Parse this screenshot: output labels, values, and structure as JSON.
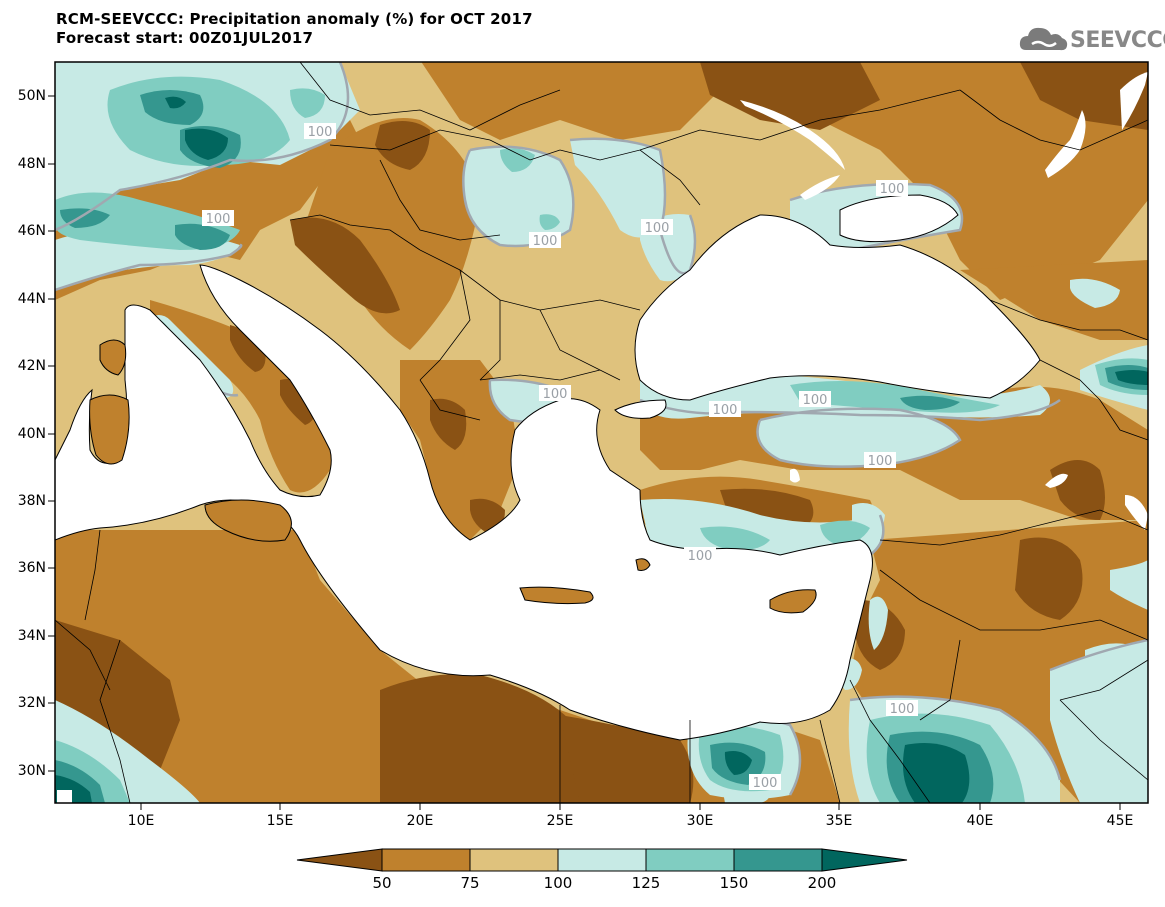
{
  "header": {
    "title_line1": "RCM-SEEVCCC: Precipitation anomaly (%) for OCT 2017",
    "title_line2": "Forecast start: 00Z01JUL2017"
  },
  "logo": {
    "text": "SEEVCCC"
  },
  "axes": {
    "latitude_labels": [
      "50N",
      "48N",
      "46N",
      "44N",
      "42N",
      "40N",
      "38N",
      "36N",
      "34N",
      "32N",
      "30N"
    ],
    "longitude_labels": [
      "10E",
      "15E",
      "20E",
      "25E",
      "30E",
      "35E",
      "40E",
      "45E"
    ]
  },
  "map": {
    "contour_label": "100"
  },
  "legend": {
    "labels": [
      "50",
      "75",
      "100",
      "125",
      "150",
      "200"
    ],
    "colors": {
      "lt50": "#8a5214",
      "50_75": "#bf812d",
      "75_100": "#dfc27d",
      "100_125": "#c7eae5",
      "125_150": "#80cdc1",
      "150_200": "#35978f",
      "gt200": "#01665e"
    }
  }
}
